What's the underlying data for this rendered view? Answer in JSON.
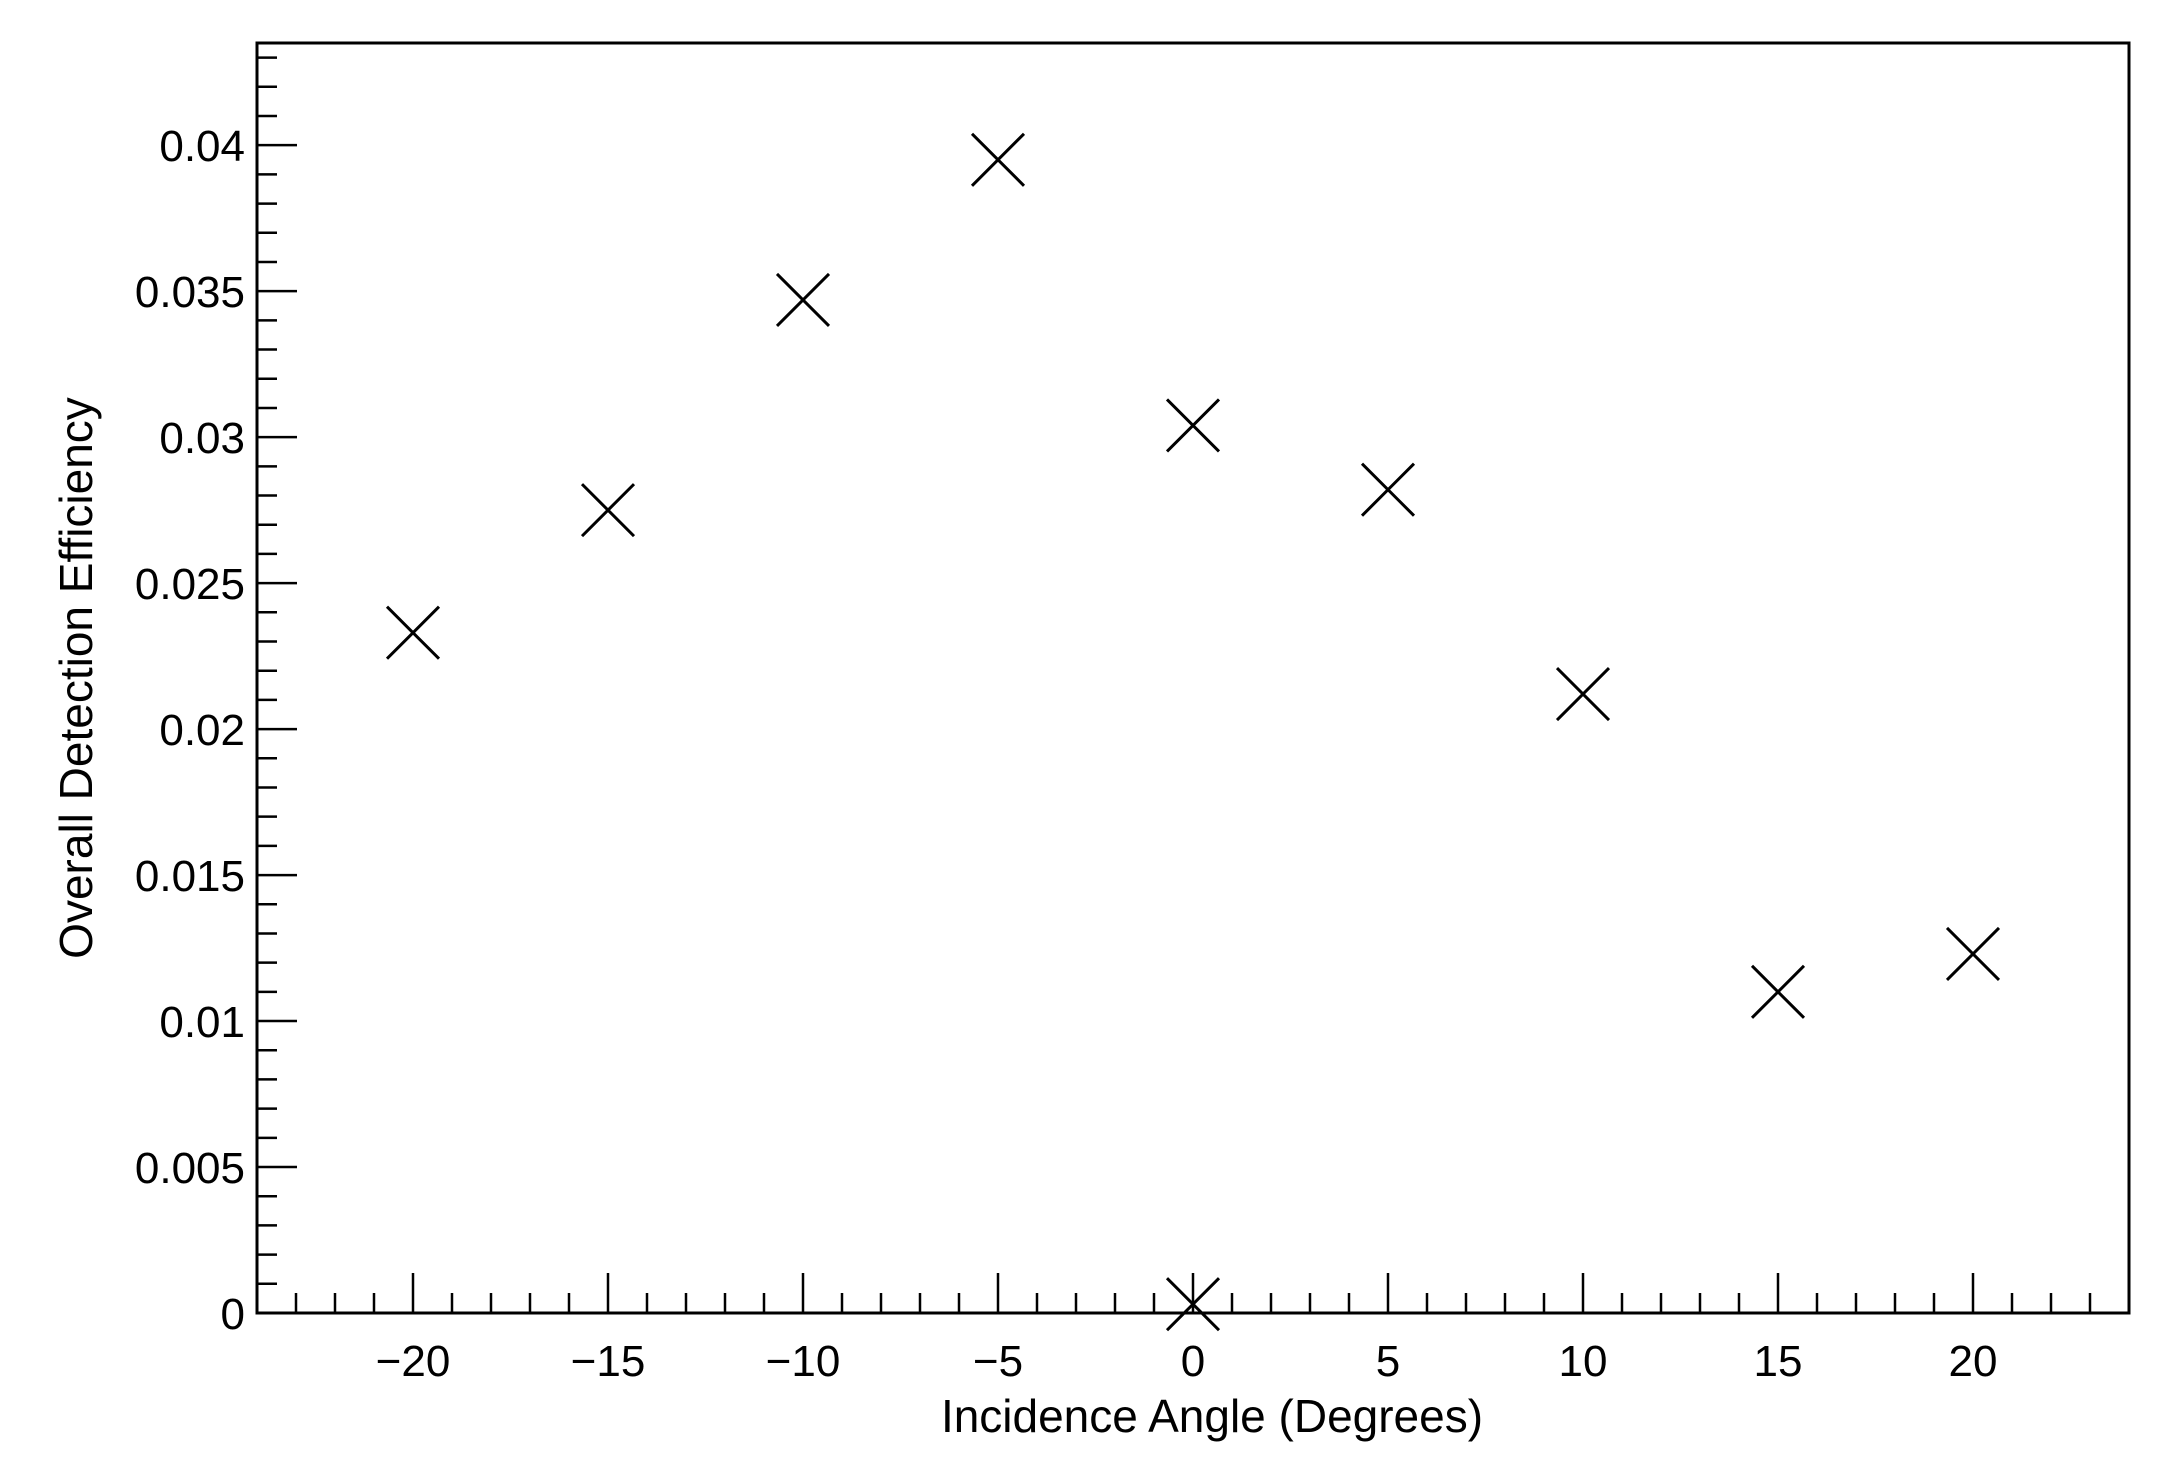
{
  "chart_data": {
    "type": "scatter",
    "xlabel": "Incidence Angle (Degrees)",
    "ylabel": "Overall Detection Efficiency",
    "xlim": [
      -24,
      24
    ],
    "ylim": [
      0,
      0.0435
    ],
    "x_ticks": [
      -20,
      -15,
      -10,
      -5,
      0,
      5,
      10,
      15,
      20
    ],
    "x_tick_labels": [
      "−20",
      "−15",
      "−10",
      "−5",
      "0",
      "5",
      "10",
      "15",
      "20"
    ],
    "y_ticks": [
      0,
      0.005,
      0.01,
      0.015,
      0.02,
      0.025,
      0.03,
      0.035,
      0.04
    ],
    "y_tick_labels": [
      "0",
      "0.005",
      "0.01",
      "0.015",
      "0.02",
      "0.025",
      "0.03",
      "0.035",
      "0.04"
    ],
    "grid": false,
    "marker": "x",
    "marker_color": "#000000",
    "series": [
      {
        "x": [
          -20,
          -15,
          -10,
          -5,
          0,
          0,
          5,
          10,
          15,
          20
        ],
        "y": [
          0.0233,
          0.0275,
          0.0347,
          0.0395,
          0.0304,
          0.0003,
          0.0282,
          0.0212,
          0.011,
          0.0123
        ]
      }
    ]
  }
}
